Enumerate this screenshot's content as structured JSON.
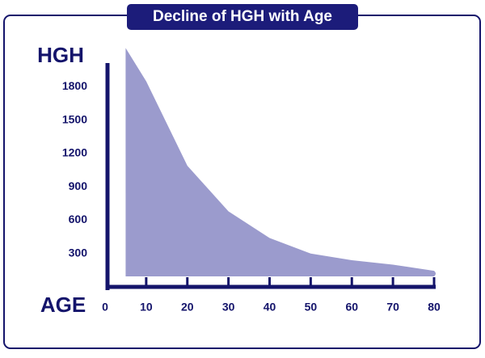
{
  "chart_data": {
    "type": "area",
    "title": "Decline of HGH with Age",
    "y_label": "HGH",
    "x_label": "AGE",
    "x": [
      5,
      10,
      20,
      30,
      40,
      50,
      60,
      70,
      80
    ],
    "values": [
      2150,
      1850,
      1090,
      680,
      440,
      300,
      240,
      200,
      145
    ],
    "color": "#9b9bcd",
    "xlim": [
      0,
      80
    ],
    "xticks": [
      0,
      10,
      20,
      30,
      40,
      50,
      60,
      70,
      80
    ],
    "ylim": [
      0,
      2000
    ],
    "yticks": [
      300,
      600,
      900,
      1200,
      1500,
      1800
    ]
  }
}
